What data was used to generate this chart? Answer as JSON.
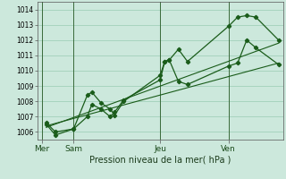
{
  "xlabel": "Pression niveau de la mer( hPa )",
  "ylim": [
    1005.5,
    1014.5
  ],
  "yticks": [
    1006,
    1007,
    1008,
    1009,
    1010,
    1011,
    1012,
    1013,
    1014
  ],
  "day_labels": [
    "Mer",
    "Sam",
    "Jeu",
    "Ven"
  ],
  "day_positions": [
    0.5,
    4.0,
    13.5,
    21.0
  ],
  "day_vlines": [
    0.5,
    4.0,
    13.5,
    21.0
  ],
  "bg_color": "#cce8dc",
  "grid_color": "#99ccb3",
  "line_color": "#1a5c1a",
  "xlim": [
    0,
    27
  ],
  "series1_x": [
    1.0,
    2.0,
    4.0,
    5.5,
    6.0,
    7.0,
    8.0,
    8.5,
    9.5,
    13.5,
    14.0,
    14.5,
    15.5,
    16.5,
    21.0,
    22.0,
    23.0,
    24.0,
    26.5
  ],
  "series1_y": [
    1006.6,
    1006.0,
    1006.2,
    1008.4,
    1008.6,
    1007.9,
    1007.5,
    1007.1,
    1008.0,
    1009.7,
    1010.6,
    1010.7,
    1011.4,
    1010.6,
    1012.9,
    1013.5,
    1013.6,
    1013.5,
    1012.0
  ],
  "series2_x": [
    1.0,
    2.0,
    4.0,
    5.5,
    6.0,
    7.0,
    8.0,
    8.5,
    9.5,
    13.5,
    14.0,
    14.5,
    15.5,
    16.5,
    21.0,
    22.0,
    23.0,
    24.0,
    26.5
  ],
  "series2_y": [
    1006.5,
    1005.8,
    1006.2,
    1007.0,
    1007.8,
    1007.5,
    1007.0,
    1007.3,
    1008.1,
    1009.4,
    1010.6,
    1010.7,
    1009.3,
    1009.1,
    1010.3,
    1010.5,
    1012.0,
    1011.5,
    1010.4
  ],
  "trend_x": [
    1.0,
    26.5
  ],
  "trend_y": [
    1006.3,
    1011.8
  ],
  "trend2_x": [
    1.0,
    26.5
  ],
  "trend2_y": [
    1006.4,
    1010.5
  ]
}
